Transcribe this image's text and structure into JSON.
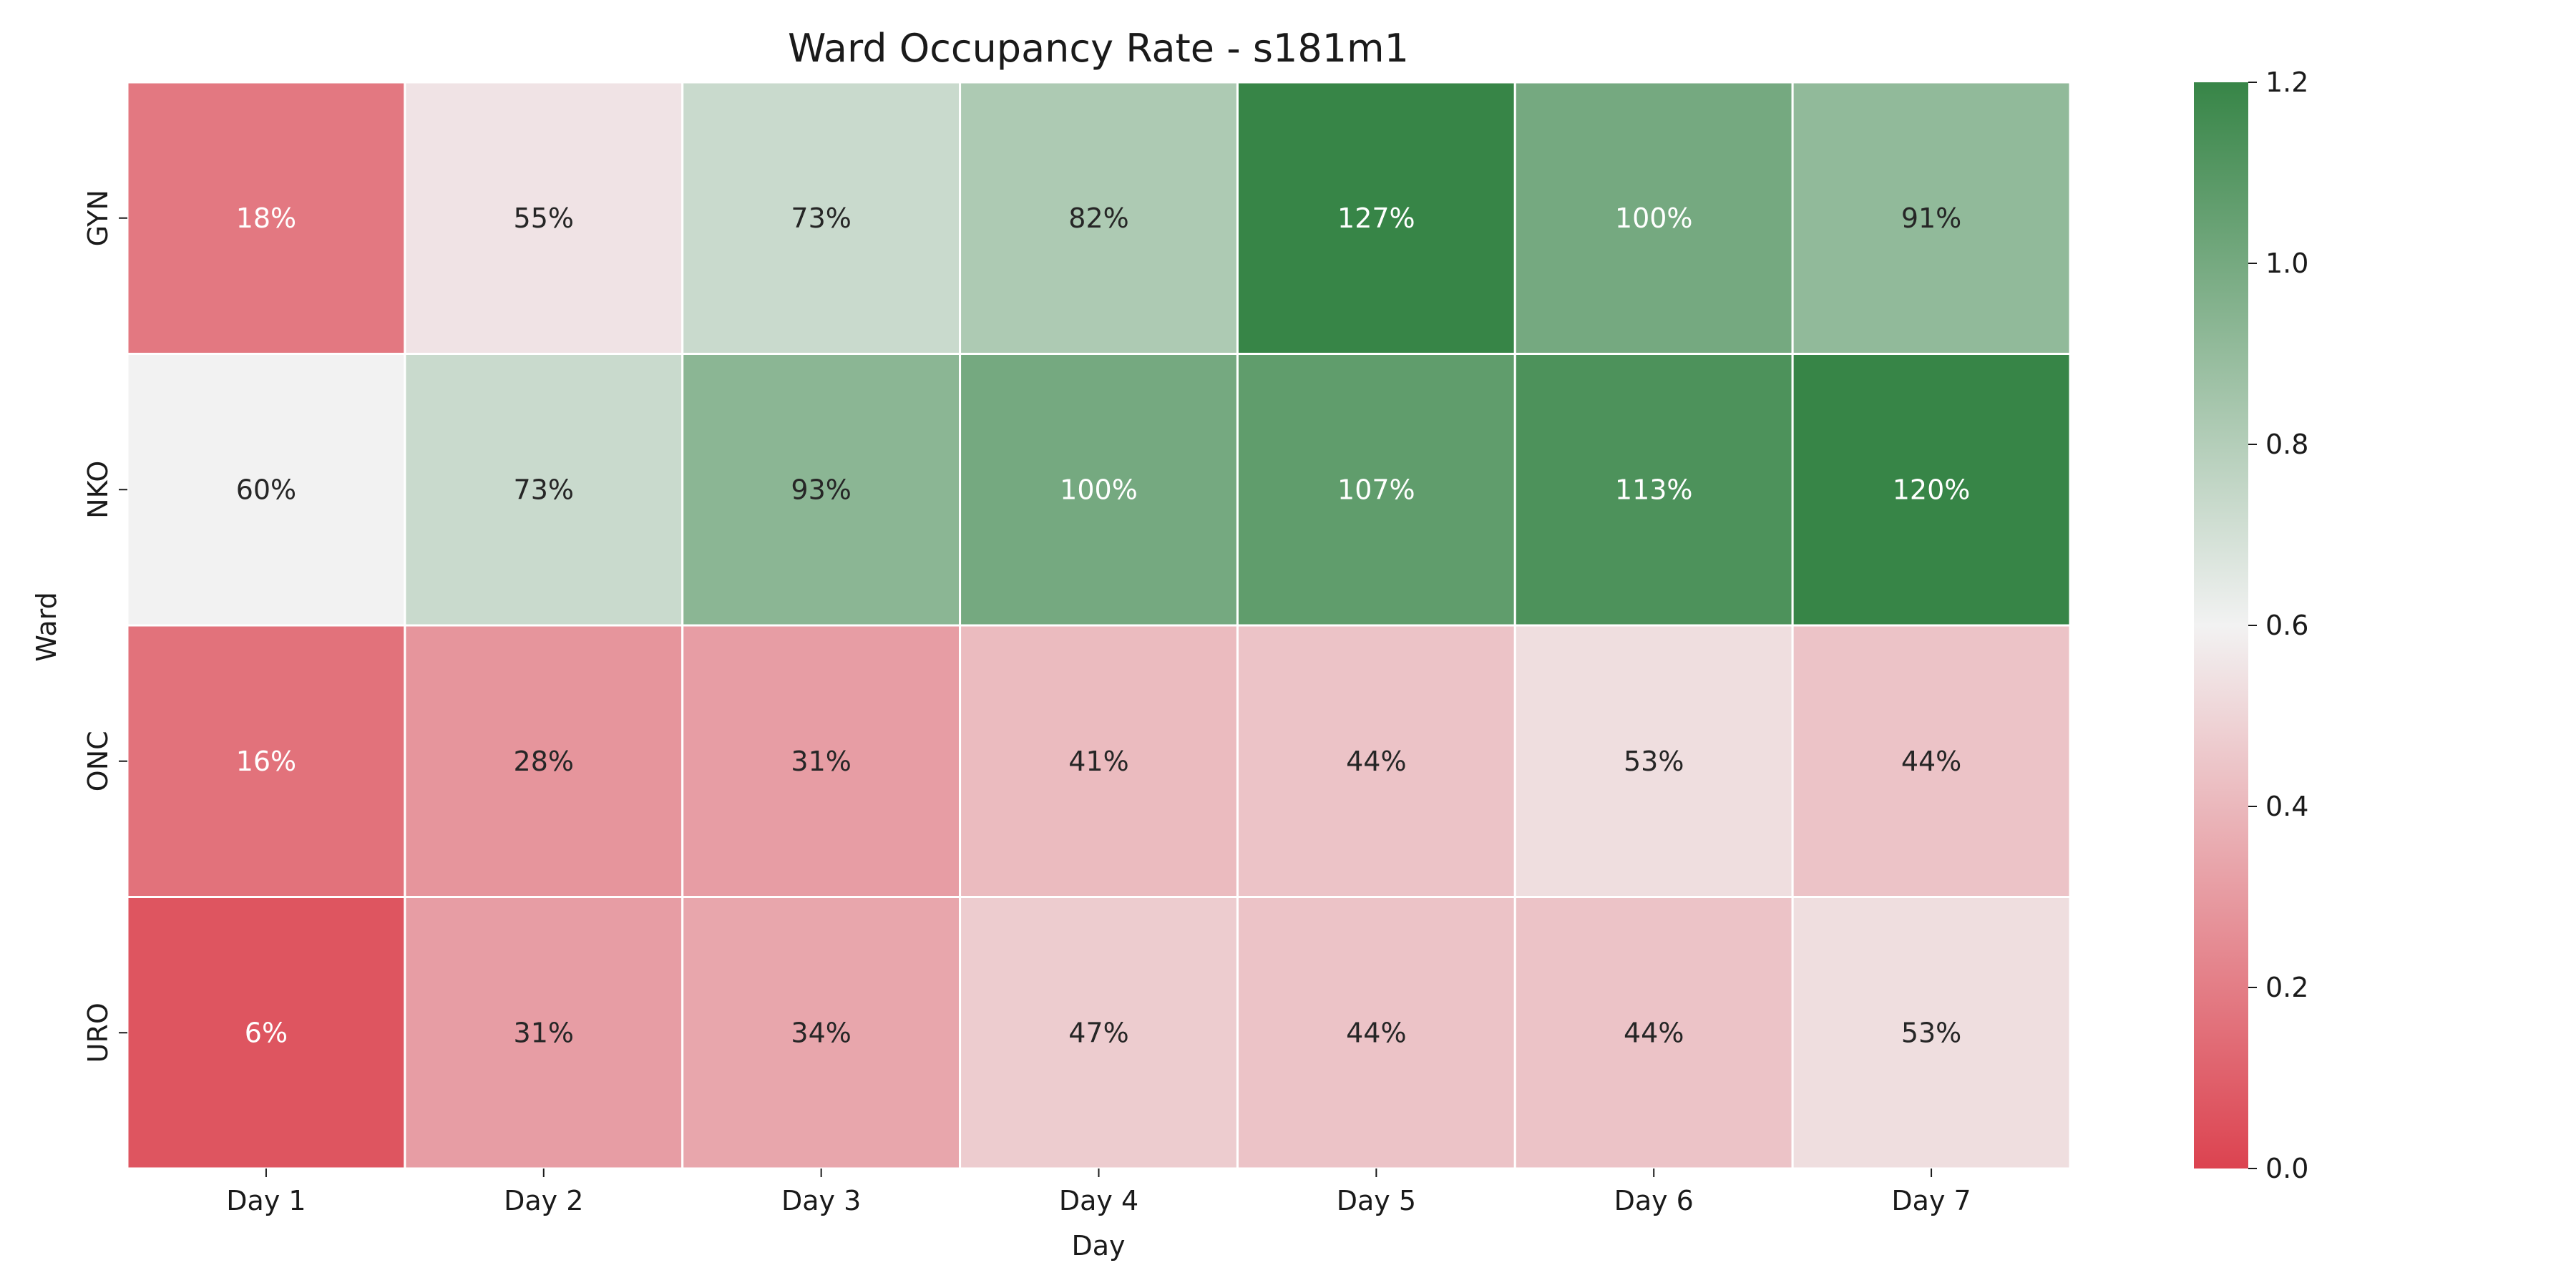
{
  "chart_data": {
    "type": "heatmap",
    "title": "Ward Occupancy Rate - s181m1",
    "xlabel": "Day",
    "ylabel": "Ward",
    "x_categories": [
      "Day 1",
      "Day 2",
      "Day 3",
      "Day 4",
      "Day 5",
      "Day 6",
      "Day 7"
    ],
    "y_categories": [
      "GYN",
      "NKO",
      "ONC",
      "URO"
    ],
    "values": [
      [
        0.18,
        0.55,
        0.73,
        0.82,
        1.27,
        1.0,
        0.91
      ],
      [
        0.6,
        0.73,
        0.93,
        1.0,
        1.07,
        1.13,
        1.2
      ],
      [
        0.16,
        0.28,
        0.31,
        0.41,
        0.44,
        0.53,
        0.44
      ],
      [
        0.06,
        0.31,
        0.34,
        0.47,
        0.44,
        0.44,
        0.53
      ]
    ],
    "annotations": [
      [
        "18%",
        "55%",
        "73%",
        "82%",
        "127%",
        "100%",
        "91%"
      ],
      [
        "60%",
        "73%",
        "93%",
        "100%",
        "107%",
        "113%",
        "120%"
      ],
      [
        "16%",
        "28%",
        "31%",
        "41%",
        "44%",
        "53%",
        "44%"
      ],
      [
        "6%",
        "31%",
        "34%",
        "47%",
        "44%",
        "44%",
        "53%"
      ]
    ],
    "colorbar": {
      "vmin": 0.0,
      "vmax": 1.2,
      "center": 0.6,
      "ticks": [
        "0.0",
        "0.2",
        "0.4",
        "0.6",
        "0.8",
        "1.0",
        "1.2"
      ],
      "colors": {
        "low": "#dc4350",
        "mid": "#f2f2f2",
        "high": "#378547"
      }
    },
    "grid": false
  }
}
